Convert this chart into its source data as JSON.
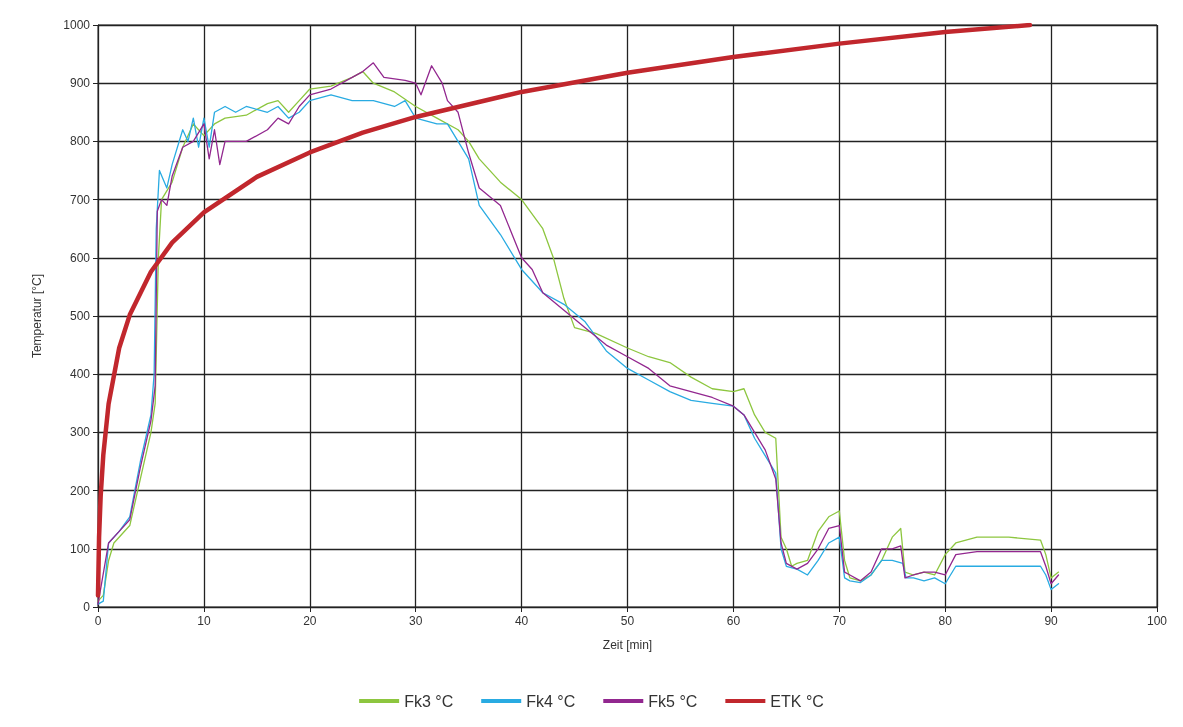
{
  "chart_data": {
    "type": "line",
    "xlabel": "Zeit [min]",
    "ylabel": "Temperatur [°C]",
    "xlim": [
      0,
      100
    ],
    "ylim": [
      0,
      1000
    ],
    "xticks": [
      0,
      10,
      20,
      30,
      40,
      50,
      60,
      70,
      80,
      90,
      100
    ],
    "yticks": [
      0,
      100,
      200,
      300,
      400,
      500,
      600,
      700,
      800,
      900,
      1000
    ],
    "grid": true,
    "legend": "bottom",
    "marker": "none",
    "line_style": "solid",
    "series": [
      {
        "name": "Fk3 °C",
        "color": "#8dc63f",
        "x": [
          0,
          0.5,
          1,
          1.5,
          3,
          4,
          5,
          5.4,
          5.7,
          6,
          7,
          8,
          9,
          10,
          11,
          12,
          14,
          16,
          17,
          18,
          19,
          20,
          22,
          24,
          25,
          26,
          28,
          30,
          32,
          34,
          35,
          36,
          38,
          40,
          42,
          43,
          44,
          45,
          47,
          50,
          52,
          54,
          56,
          58,
          60,
          61,
          62,
          63,
          64,
          64.5,
          65,
          65.5,
          66,
          67,
          68,
          69,
          70,
          70.5,
          71,
          72,
          73,
          74,
          75,
          75.8,
          76.2,
          77,
          78,
          79,
          80,
          81,
          83,
          86,
          89,
          89.5,
          90,
          90.7
        ],
        "values": [
          10,
          20,
          80,
          110,
          140,
          220,
          300,
          350,
          600,
          700,
          730,
          790,
          830,
          810,
          830,
          840,
          845,
          865,
          870,
          850,
          870,
          890,
          895,
          910,
          920,
          900,
          885,
          860,
          840,
          820,
          800,
          770,
          730,
          700,
          650,
          600,
          530,
          480,
          470,
          445,
          430,
          420,
          395,
          375,
          370,
          375,
          330,
          300,
          290,
          120,
          100,
          70,
          75,
          80,
          130,
          155,
          165,
          80,
          50,
          45,
          55,
          80,
          120,
          135,
          60,
          55,
          60,
          55,
          90,
          110,
          120,
          120,
          115,
          90,
          50,
          60
        ]
      },
      {
        "name": "Fk4 °C",
        "color": "#29abe2",
        "x": [
          0,
          0.5,
          1,
          2,
          3,
          4,
          5,
          5.3,
          5.5,
          5.8,
          6.5,
          7,
          8,
          8.5,
          9,
          9.5,
          10,
          10.5,
          11,
          12,
          13,
          14,
          16,
          17,
          18,
          19,
          20,
          22,
          24,
          26,
          28,
          29,
          30,
          32,
          33,
          34,
          35,
          36,
          38,
          40,
          42,
          44,
          46,
          48,
          50,
          52,
          54,
          56,
          58,
          60,
          61,
          62,
          63,
          64,
          64.5,
          65,
          66,
          67,
          68,
          69,
          70,
          70.5,
          71,
          72,
          73,
          74,
          75,
          76,
          76.3,
          77,
          78,
          79,
          80,
          81,
          83,
          86,
          89,
          89.5,
          90,
          90.7
        ],
        "values": [
          5,
          10,
          110,
          130,
          155,
          250,
          330,
          400,
          650,
          750,
          720,
          760,
          820,
          800,
          840,
          790,
          840,
          790,
          850,
          860,
          850,
          860,
          850,
          860,
          840,
          850,
          870,
          880,
          870,
          870,
          860,
          870,
          840,
          830,
          830,
          800,
          770,
          690,
          640,
          580,
          540,
          520,
          490,
          440,
          410,
          390,
          370,
          355,
          350,
          345,
          330,
          290,
          260,
          230,
          100,
          70,
          65,
          55,
          80,
          110,
          120,
          50,
          45,
          42,
          55,
          80,
          80,
          75,
          50,
          50,
          45,
          50,
          40,
          70,
          70,
          70,
          70,
          55,
          30,
          40
        ]
      },
      {
        "name": "Fk5 °C",
        "color": "#92278f",
        "x": [
          0,
          1,
          2,
          3,
          4,
          5,
          5.4,
          5.6,
          6,
          6.5,
          7,
          8,
          9,
          10,
          10.5,
          11,
          11.5,
          12,
          14,
          16,
          17,
          18,
          19,
          20,
          22,
          24,
          25,
          26,
          27,
          29,
          30,
          30.5,
          31.5,
          32.5,
          33,
          34,
          35,
          36,
          38,
          40,
          41,
          42,
          44,
          46,
          48,
          50,
          52,
          54,
          56,
          58,
          60,
          61,
          62,
          63,
          64,
          64.5,
          65,
          66,
          67,
          68,
          69,
          70,
          70.5,
          71,
          72,
          73,
          74,
          75,
          75.8,
          76.2,
          77,
          78,
          79,
          80,
          81,
          83,
          86,
          89,
          89.5,
          90,
          90.7
        ],
        "values": [
          5,
          110,
          130,
          150,
          240,
          320,
          380,
          680,
          700,
          690,
          740,
          790,
          800,
          830,
          770,
          820,
          760,
          800,
          800,
          820,
          840,
          830,
          860,
          880,
          890,
          910,
          920,
          935,
          910,
          905,
          900,
          880,
          930,
          900,
          870,
          850,
          780,
          720,
          690,
          600,
          580,
          540,
          510,
          480,
          450,
          430,
          410,
          380,
          370,
          360,
          345,
          330,
          300,
          270,
          220,
          110,
          75,
          65,
          75,
          100,
          135,
          140,
          60,
          55,
          45,
          60,
          100,
          100,
          105,
          50,
          55,
          60,
          60,
          55,
          90,
          95,
          95,
          95,
          70,
          40,
          55
        ]
      },
      {
        "name": "ETK °C",
        "color": "#c1272d",
        "x": [
          0,
          0.1,
          0.25,
          0.5,
          1,
          2,
          3,
          5,
          7,
          10,
          15,
          20,
          25,
          30,
          40,
          50,
          60,
          70,
          80,
          88
        ],
        "values": [
          20,
          120,
          190,
          261,
          349,
          445,
          502,
          576,
          626,
          678,
          739,
          781,
          815,
          842,
          885,
          918,
          945,
          968,
          988,
          1000
        ]
      }
    ]
  }
}
